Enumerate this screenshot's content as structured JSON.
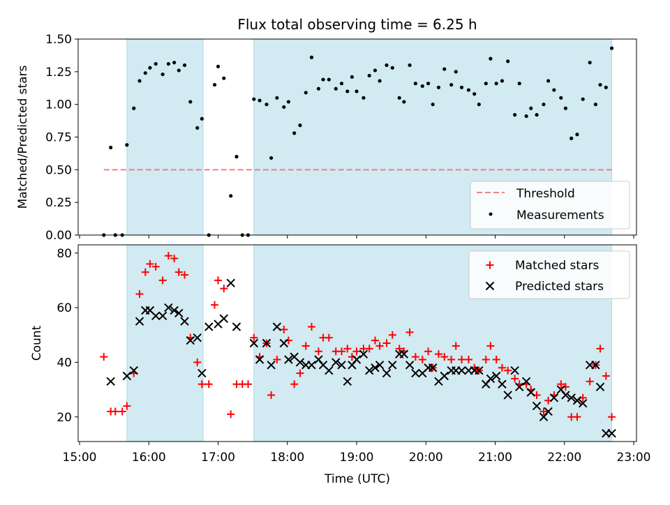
{
  "title": "Flux total observing time = 6.25 h",
  "colors": {
    "shade": "#add8e6",
    "threshold": "#f08080",
    "matched": "#ff0000",
    "predicted": "#000000",
    "measurements": "#000000"
  },
  "chart_data": [
    {
      "type": "scatter",
      "title": "Flux total observing time = 6.25 h",
      "xlabel": "",
      "ylabel": "Matched/Predicted stars",
      "xlim": [
        "15:00",
        "23:00"
      ],
      "ylim": [
        0,
        1.5
      ],
      "yticks": [
        "0.00",
        "0.25",
        "0.50",
        "0.75",
        "1.00",
        "1.25",
        "1.50"
      ],
      "legend_position": "lower right",
      "shaded_intervals": [
        [
          "15:41",
          "16:47"
        ],
        [
          "17:31",
          "22:41"
        ]
      ],
      "threshold": {
        "name": "Threshold",
        "y": 0.5,
        "x_range": [
          "15:21",
          "22:41"
        ]
      },
      "series": [
        {
          "name": "Measurements",
          "x": [
            "15:21",
            "15:27",
            "15:31",
            "15:37",
            "15:41",
            "15:47",
            "15:52",
            "15:57",
            "16:01",
            "16:06",
            "16:12",
            "16:17",
            "16:22",
            "16:26",
            "16:31",
            "16:36",
            "16:42",
            "16:46",
            "16:52",
            "16:57",
            "17:00",
            "17:05",
            "17:11",
            "17:16",
            "17:21",
            "17:26",
            "17:31",
            "17:36",
            "17:42",
            "17:46",
            "17:51",
            "17:57",
            "18:01",
            "18:06",
            "18:11",
            "18:16",
            "18:21",
            "18:27",
            "18:31",
            "18:36",
            "18:42",
            "18:47",
            "18:52",
            "18:56",
            "19:00",
            "19:06",
            "19:11",
            "19:16",
            "19:20",
            "19:26",
            "19:31",
            "19:37",
            "19:41",
            "19:46",
            "19:51",
            "19:57",
            "20:02",
            "20:06",
            "20:11",
            "20:16",
            "20:22",
            "20:26",
            "20:31",
            "20:37",
            "20:42",
            "20:46",
            "20:52",
            "20:56",
            "21:01",
            "21:06",
            "21:11",
            "21:17",
            "21:21",
            "21:27",
            "21:31",
            "21:36",
            "21:42",
            "21:46",
            "21:51",
            "21:57",
            "22:01",
            "22:06",
            "22:11",
            "22:16",
            "22:22",
            "22:27",
            "22:31",
            "22:36",
            "22:41"
          ],
          "y": [
            0.0,
            0.67,
            0.0,
            0.0,
            0.69,
            0.97,
            1.18,
            1.24,
            1.28,
            1.31,
            1.23,
            1.31,
            1.32,
            1.26,
            1.3,
            1.02,
            0.82,
            0.89,
            0.0,
            1.15,
            1.29,
            1.2,
            0.3,
            0.6,
            0.0,
            0.0,
            1.04,
            1.03,
            1.0,
            0.59,
            1.05,
            0.98,
            1.02,
            0.78,
            0.84,
            1.09,
            1.36,
            1.12,
            1.19,
            1.19,
            1.12,
            1.16,
            1.1,
            1.21,
            1.1,
            1.05,
            1.22,
            1.26,
            1.18,
            1.3,
            1.28,
            1.05,
            1.02,
            1.3,
            1.16,
            1.14,
            1.16,
            1.0,
            1.13,
            1.27,
            1.15,
            1.25,
            1.13,
            1.11,
            1.08,
            1.0,
            1.16,
            1.35,
            1.16,
            1.18,
            1.33,
            0.92,
            1.16,
            0.91,
            0.97,
            0.92,
            1.0,
            1.18,
            1.11,
            1.05,
            0.97,
            0.74,
            0.77,
            1.04,
            1.32,
            1.0,
            1.15,
            1.13,
            1.43
          ]
        }
      ]
    },
    {
      "type": "scatter",
      "xlabel": "Time (UTC)",
      "ylabel": "Count",
      "xlim": [
        "15:00",
        "23:00"
      ],
      "ylim": [
        11,
        83
      ],
      "yticks": [
        "20",
        "40",
        "60",
        "80"
      ],
      "xticks": [
        "15:00",
        "16:00",
        "17:00",
        "18:00",
        "19:00",
        "20:00",
        "21:00",
        "22:00",
        "23:00"
      ],
      "legend_position": "upper right",
      "shaded_intervals": [
        [
          "15:41",
          "16:47"
        ],
        [
          "17:31",
          "22:41"
        ]
      ],
      "series": [
        {
          "name": "Matched stars",
          "x": [
            "15:21",
            "15:27",
            "15:31",
            "15:37",
            "15:41",
            "15:47",
            "15:52",
            "15:57",
            "16:01",
            "16:06",
            "16:12",
            "16:17",
            "16:22",
            "16:26",
            "16:31",
            "16:36",
            "16:42",
            "16:46",
            "16:52",
            "16:57",
            "17:00",
            "17:05",
            "17:11",
            "17:16",
            "17:21",
            "17:26",
            "17:31",
            "17:36",
            "17:42",
            "17:46",
            "17:51",
            "17:57",
            "18:01",
            "18:06",
            "18:11",
            "18:16",
            "18:21",
            "18:27",
            "18:31",
            "18:36",
            "18:42",
            "18:47",
            "18:52",
            "18:56",
            "19:00",
            "19:06",
            "19:11",
            "19:16",
            "19:20",
            "19:26",
            "19:31",
            "19:37",
            "19:41",
            "19:46",
            "19:51",
            "19:57",
            "20:02",
            "20:06",
            "20:11",
            "20:16",
            "20:22",
            "20:26",
            "20:31",
            "20:37",
            "20:42",
            "20:46",
            "20:52",
            "20:56",
            "21:01",
            "21:06",
            "21:11",
            "21:17",
            "21:21",
            "21:27",
            "21:31",
            "21:36",
            "21:42",
            "21:46",
            "21:51",
            "21:57",
            "22:01",
            "22:06",
            "22:11",
            "22:16",
            "22:22",
            "22:27",
            "22:31",
            "22:36",
            "22:41"
          ],
          "y": [
            42,
            22,
            22,
            22,
            24,
            36,
            65,
            73,
            76,
            75,
            70,
            79,
            78,
            73,
            72,
            49,
            40,
            32,
            32,
            61,
            70,
            67,
            21,
            32,
            32,
            32,
            49,
            42,
            47,
            28,
            41,
            52,
            48,
            32,
            36,
            46,
            53,
            44,
            49,
            49,
            44,
            44,
            45,
            42,
            44,
            45,
            45,
            48,
            46,
            47,
            50,
            45,
            44,
            51,
            42,
            41,
            44,
            38,
            43,
            42,
            41,
            46,
            41,
            41,
            38,
            37,
            41,
            46,
            41,
            38,
            37,
            34,
            32,
            32,
            30,
            28,
            22,
            26,
            28,
            32,
            31,
            20,
            20,
            27,
            33,
            39,
            45,
            35,
            20
          ]
        },
        {
          "name": "Predicted stars",
          "x": [
            "15:27",
            "15:41",
            "15:47",
            "15:52",
            "15:57",
            "16:01",
            "16:06",
            "16:12",
            "16:17",
            "16:22",
            "16:26",
            "16:31",
            "16:36",
            "16:42",
            "16:46",
            "16:52",
            "17:00",
            "17:05",
            "17:11",
            "17:16",
            "17:31",
            "17:36",
            "17:42",
            "17:46",
            "17:51",
            "17:57",
            "18:01",
            "18:06",
            "18:11",
            "18:16",
            "18:21",
            "18:27",
            "18:31",
            "18:36",
            "18:42",
            "18:47",
            "18:52",
            "18:56",
            "19:00",
            "19:06",
            "19:11",
            "19:16",
            "19:20",
            "19:26",
            "19:31",
            "19:37",
            "19:41",
            "19:46",
            "19:51",
            "19:57",
            "20:02",
            "20:06",
            "20:11",
            "20:16",
            "20:22",
            "20:26",
            "20:31",
            "20:37",
            "20:42",
            "20:46",
            "20:52",
            "20:56",
            "21:01",
            "21:06",
            "21:11",
            "21:17",
            "21:21",
            "21:27",
            "21:31",
            "21:36",
            "21:42",
            "21:46",
            "21:51",
            "21:57",
            "22:01",
            "22:06",
            "22:11",
            "22:16",
            "22:22",
            "22:27",
            "22:31",
            "22:36",
            "22:41"
          ],
          "y": [
            33,
            35,
            37,
            55,
            59,
            59,
            57,
            57,
            60,
            59,
            58,
            55,
            48,
            49,
            36,
            53,
            54,
            56,
            69,
            53,
            47,
            41,
            47,
            39,
            53,
            47,
            41,
            42,
            40,
            39,
            39,
            41,
            39,
            37,
            40,
            39,
            33,
            39,
            41,
            43,
            37,
            38,
            39,
            36,
            39,
            43,
            43,
            39,
            36,
            36,
            38,
            38,
            33,
            35,
            37,
            37,
            37,
            37,
            37,
            37,
            32,
            34,
            35,
            32,
            28,
            37,
            31,
            33,
            29,
            24,
            20,
            22,
            27,
            30,
            28,
            27,
            26,
            25,
            39,
            39,
            31,
            14,
            14
          ]
        }
      ]
    }
  ]
}
